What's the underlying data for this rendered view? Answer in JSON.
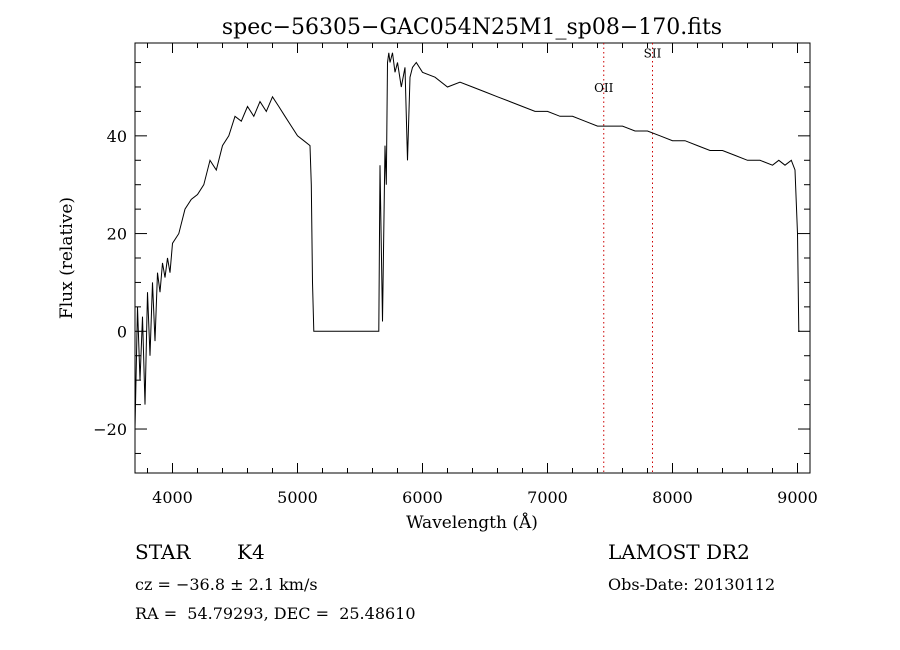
{
  "chart_data": {
    "type": "line",
    "title": "spec−56305−GAC054N25M1_sp08−170.fits",
    "xlabel": "Wavelength (Å)",
    "ylabel": "Flux (relative)",
    "xlim": [
      3700,
      9100
    ],
    "ylim": [
      -29,
      59
    ],
    "xticks": [
      4000,
      5000,
      6000,
      7000,
      8000,
      9000
    ],
    "xtick_labels": [
      "4000",
      "5000",
      "6000",
      "7000",
      "8000",
      "9000"
    ],
    "yticks": [
      -20,
      0,
      20,
      40
    ],
    "ytick_labels": [
      "−20",
      "0",
      "20",
      "40"
    ],
    "grid": false,
    "series": [
      {
        "x": [
          3700,
          3720,
          3740,
          3760,
          3780,
          3800,
          3820,
          3840,
          3860,
          3880,
          3900,
          3920,
          3940,
          3960,
          3980,
          4000,
          4050,
          4100,
          4150,
          4200,
          4250,
          4300,
          4350,
          4400,
          4450,
          4500,
          4550,
          4600,
          4650,
          4700,
          4750,
          4800,
          4850,
          4900,
          4950,
          5000,
          5050,
          5100,
          5110,
          5120,
          5130,
          5200,
          5300,
          5400,
          5500,
          5600,
          5650,
          5660,
          5680,
          5700,
          5710,
          5720,
          5730,
          5740,
          5760,
          5780,
          5800,
          5830,
          5860,
          5880,
          5900,
          5920,
          5950,
          6000,
          6100,
          6200,
          6300,
          6400,
          6500,
          6600,
          6700,
          6800,
          6900,
          7000,
          7100,
          7200,
          7300,
          7400,
          7500,
          7600,
          7700,
          7800,
          7900,
          8000,
          8100,
          8200,
          8300,
          8400,
          8500,
          8600,
          8700,
          8800,
          8850,
          8900,
          8950,
          8980,
          9000,
          9010,
          9020
        ],
        "y": [
          -20,
          5,
          -10,
          3,
          -15,
          8,
          -5,
          10,
          -2,
          12,
          8,
          14,
          11,
          15,
          12,
          18,
          20,
          25,
          27,
          28,
          30,
          35,
          33,
          38,
          40,
          44,
          43,
          46,
          44,
          47,
          45,
          48,
          46,
          44,
          42,
          40,
          39,
          38,
          30,
          10,
          0,
          0,
          0,
          0,
          0,
          0,
          0,
          34,
          2,
          38,
          30,
          55,
          57,
          55,
          57,
          53,
          55,
          50,
          54,
          35,
          52,
          54,
          55,
          53,
          52,
          50,
          51,
          50,
          49,
          48,
          47,
          46,
          45,
          45,
          44,
          44,
          43,
          42,
          42,
          42,
          41,
          41,
          40,
          39,
          39,
          38,
          37,
          37,
          36,
          35,
          35,
          34,
          35,
          34,
          35,
          33,
          20,
          0,
          0
        ]
      }
    ],
    "annotations": [
      {
        "label": "OII",
        "x": 7450,
        "y": 49
      },
      {
        "label": "SII",
        "x": 7840,
        "y": 56
      }
    ],
    "marker_lines": [
      7450,
      7840
    ],
    "colors": {
      "spectrum": "#000000",
      "marker": "#cc0000"
    }
  },
  "info": {
    "object_class": "STAR",
    "subclass": "K4",
    "cz": "cz = −36.8 ± 2.1 km/s",
    "coords": "RA =  54.79293, DEC =  25.48610",
    "survey": "LAMOST DR2",
    "obs_date": "Obs-Date: 20130112"
  }
}
